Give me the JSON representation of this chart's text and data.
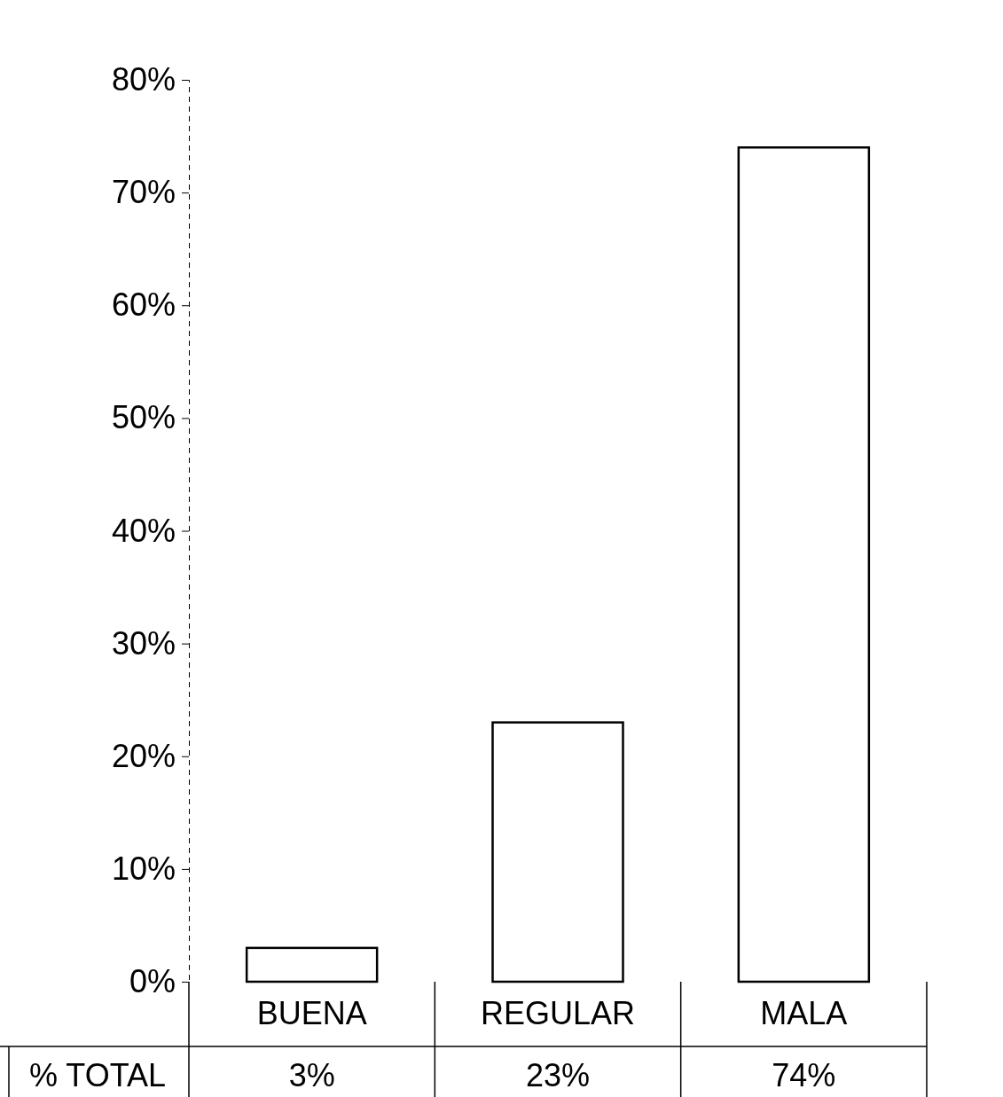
{
  "chart_data": {
    "type": "bar",
    "categories": [
      "BUENA",
      "REGULAR",
      "MALA"
    ],
    "values": [
      3,
      23,
      74
    ],
    "color": "#ffffff",
    "value_labels": [
      "3%",
      "23%",
      "74%"
    ],
    "annotations": [
      "% TOTAL"
    ],
    "ylim": [
      0,
      80
    ],
    "yticks": [
      {
        "value": 0,
        "label": "0%"
      },
      {
        "value": 10,
        "label": "10%"
      },
      {
        "value": 20,
        "label": "20%"
      },
      {
        "value": 30,
        "label": "30%"
      },
      {
        "value": 40,
        "label": "40%"
      },
      {
        "value": 50,
        "label": "50%"
      },
      {
        "value": 60,
        "label": "60%"
      },
      {
        "value": 70,
        "label": "70%"
      },
      {
        "value": 80,
        "label": "80%"
      }
    ],
    "grid": false
  }
}
